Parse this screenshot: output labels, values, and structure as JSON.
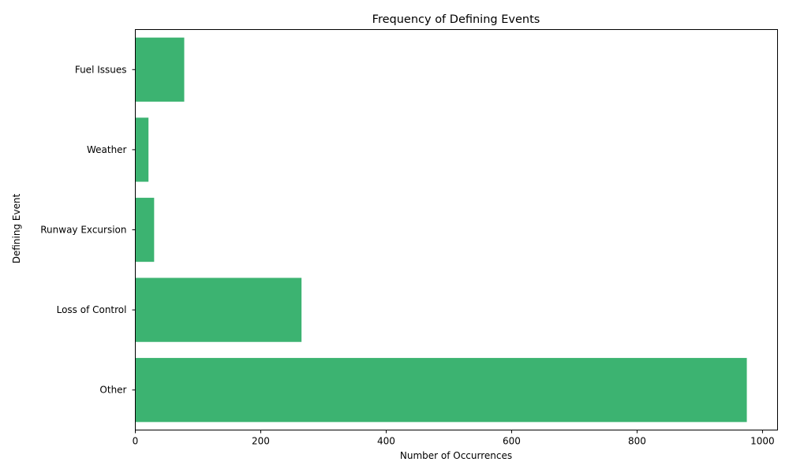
{
  "chart_data": {
    "type": "bar",
    "orientation": "horizontal",
    "title": "Frequency of Defining Events",
    "xlabel": "Number of Occurrences",
    "ylabel": "Defining Event",
    "categories": [
      "Other",
      "Loss of Control",
      "Runway Excursion",
      "Weather",
      "Fuel Issues"
    ],
    "values": [
      975,
      265,
      30,
      21,
      78
    ],
    "xlim": [
      0,
      1024
    ],
    "xticks": [
      0,
      200,
      400,
      600,
      800,
      1000
    ],
    "bar_color": "#3cb371",
    "grid": false,
    "legend": "none"
  }
}
